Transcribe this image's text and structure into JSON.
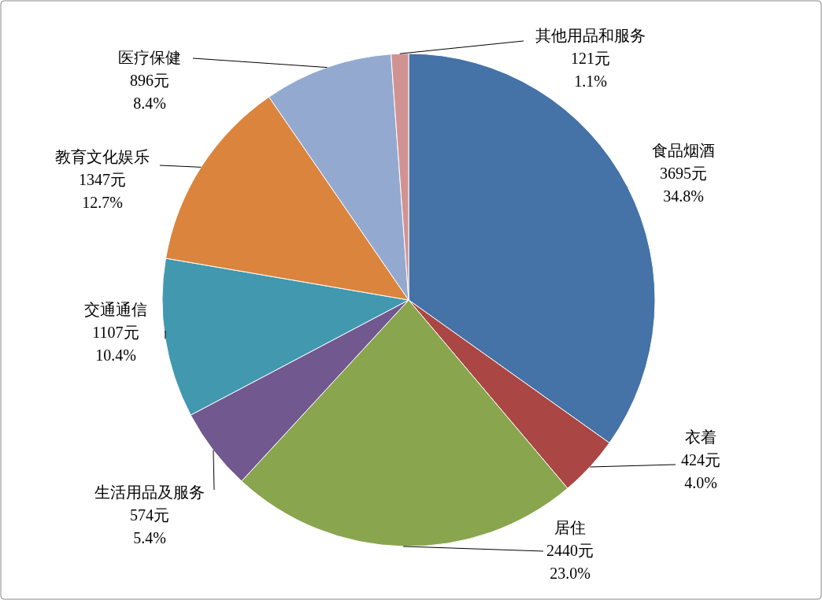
{
  "chart_data": {
    "type": "pie",
    "categories": [
      "食品烟酒",
      "衣着",
      "居住",
      "生活用品及服务",
      "交通通信",
      "教育文化娱乐",
      "医疗保健",
      "其他用品和服务"
    ],
    "values": [
      3695,
      424,
      2440,
      574,
      1107,
      1347,
      896,
      121
    ],
    "colors": [
      "#4572a7",
      "#aa4643",
      "#89a54e",
      "#71588f",
      "#4198af",
      "#db843d",
      "#93a9cf",
      "#d19392"
    ],
    "value_labels": [
      "3695元\n34.8%",
      "424元\n4.0%",
      "2440元\n23.0%",
      "574元\n5.4%",
      "1107元\n10.4%",
      "1347元\n12.7%",
      "896元\n8.4%",
      "121元\n1.1%"
    ]
  }
}
